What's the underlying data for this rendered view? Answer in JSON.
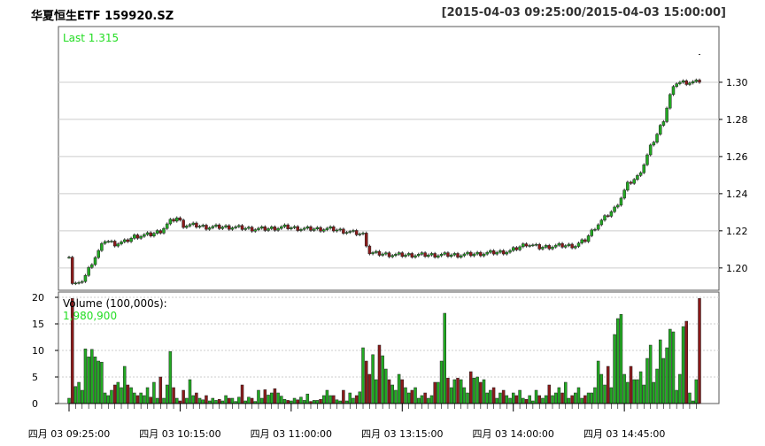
{
  "header": {
    "title": "华夏恒生ETF 159920.SZ",
    "range": "[2015-04-03 09:25:00/2015-04-03 15:00:00]"
  },
  "colors": {
    "up": "#22aa22",
    "down": "#8b1a1a",
    "last_text": "#22dd22",
    "grid": "#cccccc"
  },
  "chart_data": [
    {
      "type": "candlestick",
      "name": "price",
      "last_label": "Last 1.315",
      "ylim": [
        1.188,
        1.33
      ],
      "yticks": [
        "1.20",
        "1.22",
        "1.24",
        "1.26",
        "1.28",
        "1.30"
      ],
      "ytick_values": [
        1.2,
        1.22,
        1.24,
        1.26,
        1.28,
        1.3
      ],
      "grid": true,
      "anchors": [
        [
          0,
          1.207
        ],
        [
          1,
          1.192
        ],
        [
          3,
          1.191
        ],
        [
          5,
          1.196
        ],
        [
          7,
          1.203
        ],
        [
          9,
          1.209
        ],
        [
          11,
          1.215
        ],
        [
          14,
          1.213
        ],
        [
          17,
          1.214
        ],
        [
          20,
          1.217
        ],
        [
          25,
          1.218
        ],
        [
          28,
          1.22
        ],
        [
          31,
          1.225
        ],
        [
          33,
          1.227
        ],
        [
          35,
          1.223
        ],
        [
          38,
          1.223
        ],
        [
          42,
          1.222
        ],
        [
          50,
          1.222
        ],
        [
          56,
          1.221
        ],
        [
          60,
          1.221
        ],
        [
          66,
          1.222
        ],
        [
          72,
          1.221
        ],
        [
          80,
          1.221
        ],
        [
          87,
          1.219
        ],
        [
          90,
          1.218
        ],
        [
          92,
          1.208
        ],
        [
          100,
          1.207
        ],
        [
          110,
          1.207
        ],
        [
          120,
          1.207
        ],
        [
          128,
          1.208
        ],
        [
          135,
          1.209
        ],
        [
          140,
          1.213
        ],
        [
          144,
          1.211
        ],
        [
          150,
          1.212
        ],
        [
          155,
          1.212
        ],
        [
          158,
          1.215
        ],
        [
          161,
          1.222
        ],
        [
          164,
          1.227
        ],
        [
          167,
          1.232
        ],
        [
          169,
          1.238
        ],
        [
          171,
          1.245
        ],
        [
          174,
          1.249
        ],
        [
          176,
          1.256
        ],
        [
          178,
          1.265
        ],
        [
          180,
          1.272
        ],
        [
          182,
          1.28
        ],
        [
          184,
          1.293
        ],
        [
          186,
          1.3
        ],
        [
          188,
          1.3
        ],
        [
          190,
          1.3
        ]
      ],
      "closes_note": "",
      "volume": {
        "label": "Volume (100,000s):",
        "last_value": "1,980,900",
        "ylim": [
          0,
          21
        ],
        "yticks": [
          "0",
          "5",
          "10",
          "15",
          "20"
        ],
        "ytick_values": [
          0,
          5,
          10,
          15,
          20
        ],
        "values": [
          1.0,
          19.8,
          3.2,
          4.0,
          2.5,
          10.3,
          8.8,
          10.2,
          8.8,
          8.0,
          7.8,
          2.0,
          1.5,
          2.5,
          3.5,
          4.0,
          3.0,
          7.0,
          3.5,
          3.0,
          2.0,
          1.5,
          2.0,
          1.5,
          3.0,
          1.2,
          4.0,
          1.0,
          5.0,
          1.0,
          3.5,
          9.8,
          3.0,
          1.0,
          0.5,
          2.5,
          1.0,
          4.5,
          1.5,
          2.0,
          1.0,
          0.7,
          1.5,
          0.5,
          1.0,
          0.6,
          0.8,
          0.5,
          1.5,
          1.0,
          1.0,
          0.4,
          1.2,
          3.5,
          0.5,
          1.2,
          1.0,
          0.4,
          2.5,
          1.0,
          2.6,
          1.6,
          2.0,
          2.8,
          2.0,
          1.4,
          0.8,
          0.6,
          0.5,
          1.0,
          0.7,
          1.2,
          0.6,
          1.8,
          0.4,
          0.6,
          0.6,
          0.8,
          1.5,
          2.5,
          1.5,
          1.5,
          0.7,
          0.5,
          2.5,
          0.5,
          2.0,
          1.0,
          1.5,
          2.2,
          10.5,
          8.0,
          5.5,
          9.2,
          4.5,
          11.0,
          9.0,
          6.5,
          4.5,
          3.5,
          2.5,
          5.5,
          4.5,
          3.0,
          2.0,
          2.5,
          3.0,
          1.0,
          1.5,
          2.0,
          1.0,
          1.5,
          4.0,
          4.0,
          8.0,
          17.0,
          4.8,
          3.0,
          4.5,
          4.8,
          4.5,
          3.0,
          2.0,
          6.0,
          4.8,
          5.0,
          4.0,
          4.5,
          2.0,
          2.5,
          3.0,
          1.0,
          2.0,
          2.5,
          1.5,
          1.0,
          2.0,
          1.5,
          2.5,
          1.0,
          0.8,
          1.5,
          0.5,
          2.5,
          1.5,
          1.0,
          1.5,
          3.5,
          1.5,
          2.0,
          3.0,
          2.0,
          4.0,
          1.0,
          1.5,
          2.0,
          3.0,
          1.0,
          1.5,
          2.0,
          2.0,
          3.0,
          8.0,
          5.5,
          3.5,
          7.0,
          3.0,
          13.0,
          16.0,
          16.8,
          5.5,
          4.0,
          7.0,
          4.5,
          4.5,
          6.0,
          3.5,
          8.5,
          11.0,
          4.0,
          6.5,
          12.0,
          8.5,
          10.5,
          14.0,
          13.5,
          2.5,
          5.5,
          14.5,
          15.5,
          2.0,
          0.5,
          4.5,
          19.8
        ],
        "highlights_note": ""
      },
      "xtick_labels": [
        "四月 03 09:25:00",
        "四月 03 10:15:00",
        "四月 03 11:00:00",
        "四月 03 13:15:00",
        "四月 03 14:00:00",
        "四月 03 14:45:00"
      ],
      "xtick_bar_index": [
        0,
        34,
        68,
        102,
        136,
        170
      ]
    }
  ]
}
